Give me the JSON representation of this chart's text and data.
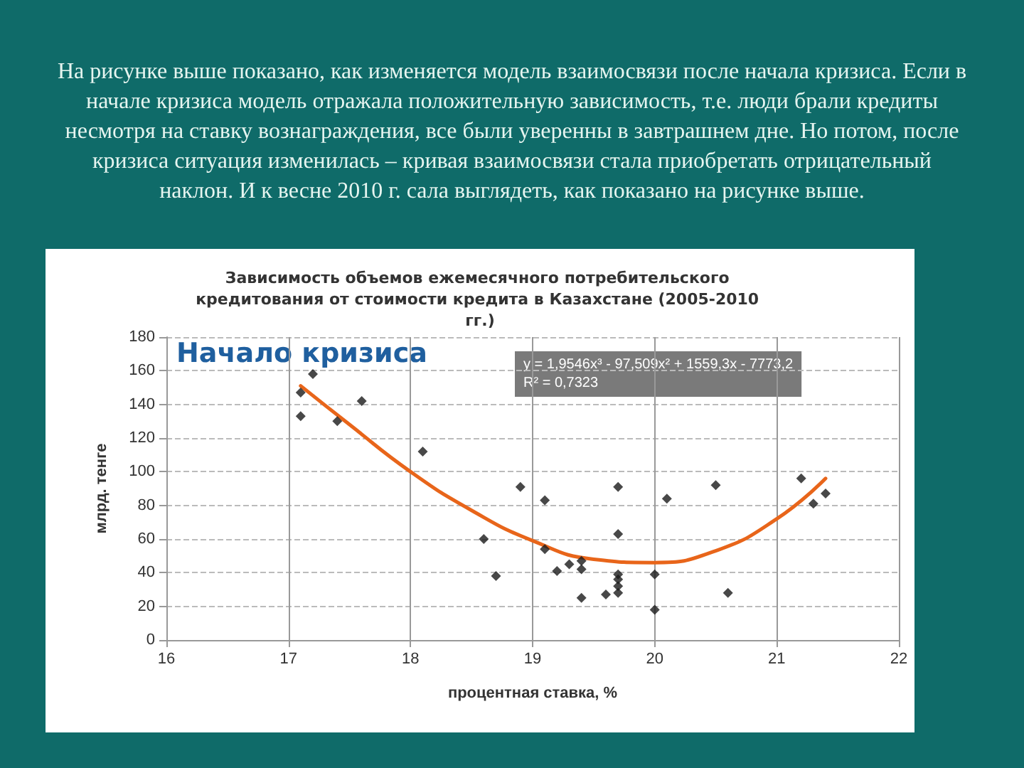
{
  "chart_data": {
    "type": "scatter",
    "title": "Зависимость объемов ежемесячного потребительского кредитования от стоимости кредита в Казахстане (2005-2010 гг.)",
    "xlabel": "процентная ставка, %",
    "ylabel": "млрд. тенге",
    "annotations": [
      "На рисунке выше показано, как изменяется модель взаимосвязи после начала кризиса. Если в начале кризиса модель отражала положительную зависимость, т.е. люди брали кредиты несмотря на ставку вознаграждения, все были уверенны в завтрашнем дне. Но потом, после кризиса ситуация изменилась – кривая взаимосвязи стала приобретать отрицательный наклон. И к весне 2010 г. сала выглядеть, как показано на рисунке выше.",
      "Начало кризиса",
      "y = 1,9546x³ - 97,509x² + 1559,3x - 7773,2",
      "R² = 0,7323"
    ],
    "xlim": [
      16,
      22
    ],
    "xticks": [
      16,
      17,
      18,
      19,
      20,
      21,
      22
    ],
    "ylim": [
      0,
      180
    ],
    "yticks": [
      0,
      20,
      40,
      60,
      80,
      100,
      120,
      140,
      160,
      180
    ],
    "grid": true,
    "marker": "diamond",
    "series": [
      {
        "color": "#1a1a1a",
        "x": [
          17.1,
          17.1,
          17.2,
          17.4,
          17.6,
          18.1,
          18.6,
          18.7,
          18.9,
          19.1,
          19.1,
          19.2,
          19.3,
          19.4,
          19.4,
          19.4,
          19.6,
          19.7,
          19.7,
          19.7,
          19.7,
          19.7,
          19.7,
          20.0,
          20.0,
          20.1,
          20.5,
          20.6,
          21.2,
          21.3,
          21.4
        ],
        "values": [
          147,
          133,
          158,
          130,
          142,
          112,
          60,
          38,
          91,
          83,
          54,
          41,
          45,
          47,
          42,
          25,
          27,
          91,
          63,
          39,
          36,
          32,
          28,
          39,
          18,
          84,
          92,
          28,
          96,
          81,
          87
        ]
      },
      {
        "type": "line",
        "color": "#e8651a",
        "marker": "none",
        "x": [
          17.1,
          17.5,
          18.0,
          18.5,
          19.0,
          19.5,
          20.0,
          20.5,
          21.0,
          21.4
        ],
        "values": [
          151,
          128,
          100,
          77,
          59,
          48,
          46,
          53,
          72,
          96
        ]
      }
    ]
  }
}
